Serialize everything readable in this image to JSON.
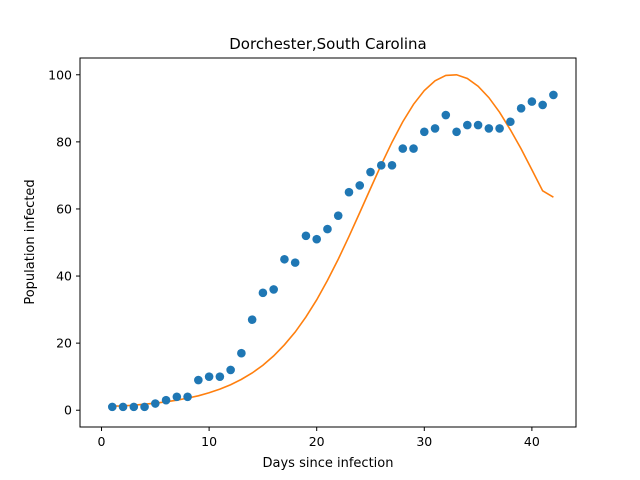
{
  "chart_data": {
    "type": "scatter",
    "title": "Dorchester,South Carolina",
    "xlabel": "Days since infection",
    "ylabel": "Population infected",
    "xlim": [
      -2,
      44.1
    ],
    "ylim": [
      -5,
      105
    ],
    "xticks": [
      0,
      10,
      20,
      30,
      40
    ],
    "yticks": [
      0,
      20,
      40,
      60,
      80,
      100
    ],
    "grid": false,
    "series": [
      {
        "kind": "scatter",
        "color": "#1f77b4",
        "x": [
          1,
          2,
          3,
          4,
          5,
          6,
          7,
          8,
          9,
          10,
          11,
          12,
          13,
          14,
          15,
          16,
          17,
          18,
          19,
          20,
          21,
          22,
          23,
          24,
          25,
          26,
          27,
          28,
          29,
          30,
          31,
          32,
          33,
          34,
          35,
          36,
          37,
          38,
          39,
          40,
          41,
          42
        ],
        "y": [
          1,
          1,
          1,
          1,
          2,
          3,
          4,
          4,
          9,
          10,
          10,
          12,
          17,
          27,
          35,
          36,
          45,
          44,
          52,
          51,
          54,
          58,
          65,
          67,
          71,
          73,
          73,
          78,
          78,
          83,
          84,
          88,
          83,
          85,
          85,
          84,
          84,
          86,
          90,
          92,
          91,
          94
        ]
      },
      {
        "kind": "line",
        "color": "#ff7f0e",
        "x": [
          1,
          2,
          3,
          4,
          5,
          6,
          7,
          8,
          9,
          10,
          11,
          12,
          13,
          14,
          15,
          16,
          17,
          18,
          19,
          20,
          21,
          22,
          23,
          24,
          25,
          26,
          27,
          28,
          29,
          30,
          31,
          32,
          33,
          34,
          35,
          36,
          37,
          38,
          39,
          40,
          41,
          42
        ],
        "y": [
          1.2,
          1.3,
          1.5,
          1.8,
          2.1,
          2.5,
          3.0,
          3.6,
          4.3,
          5.2,
          6.3,
          7.6,
          9.2,
          11.1,
          13.4,
          16.2,
          19.5,
          23.3,
          27.8,
          32.9,
          38.7,
          45.0,
          51.8,
          58.9,
          66.1,
          73.2,
          79.9,
          86.0,
          91.2,
          95.3,
          98.2,
          99.8,
          100.0,
          98.9,
          96.6,
          93.2,
          88.8,
          83.6,
          77.9,
          71.7,
          65.4,
          63.5
        ]
      }
    ]
  }
}
